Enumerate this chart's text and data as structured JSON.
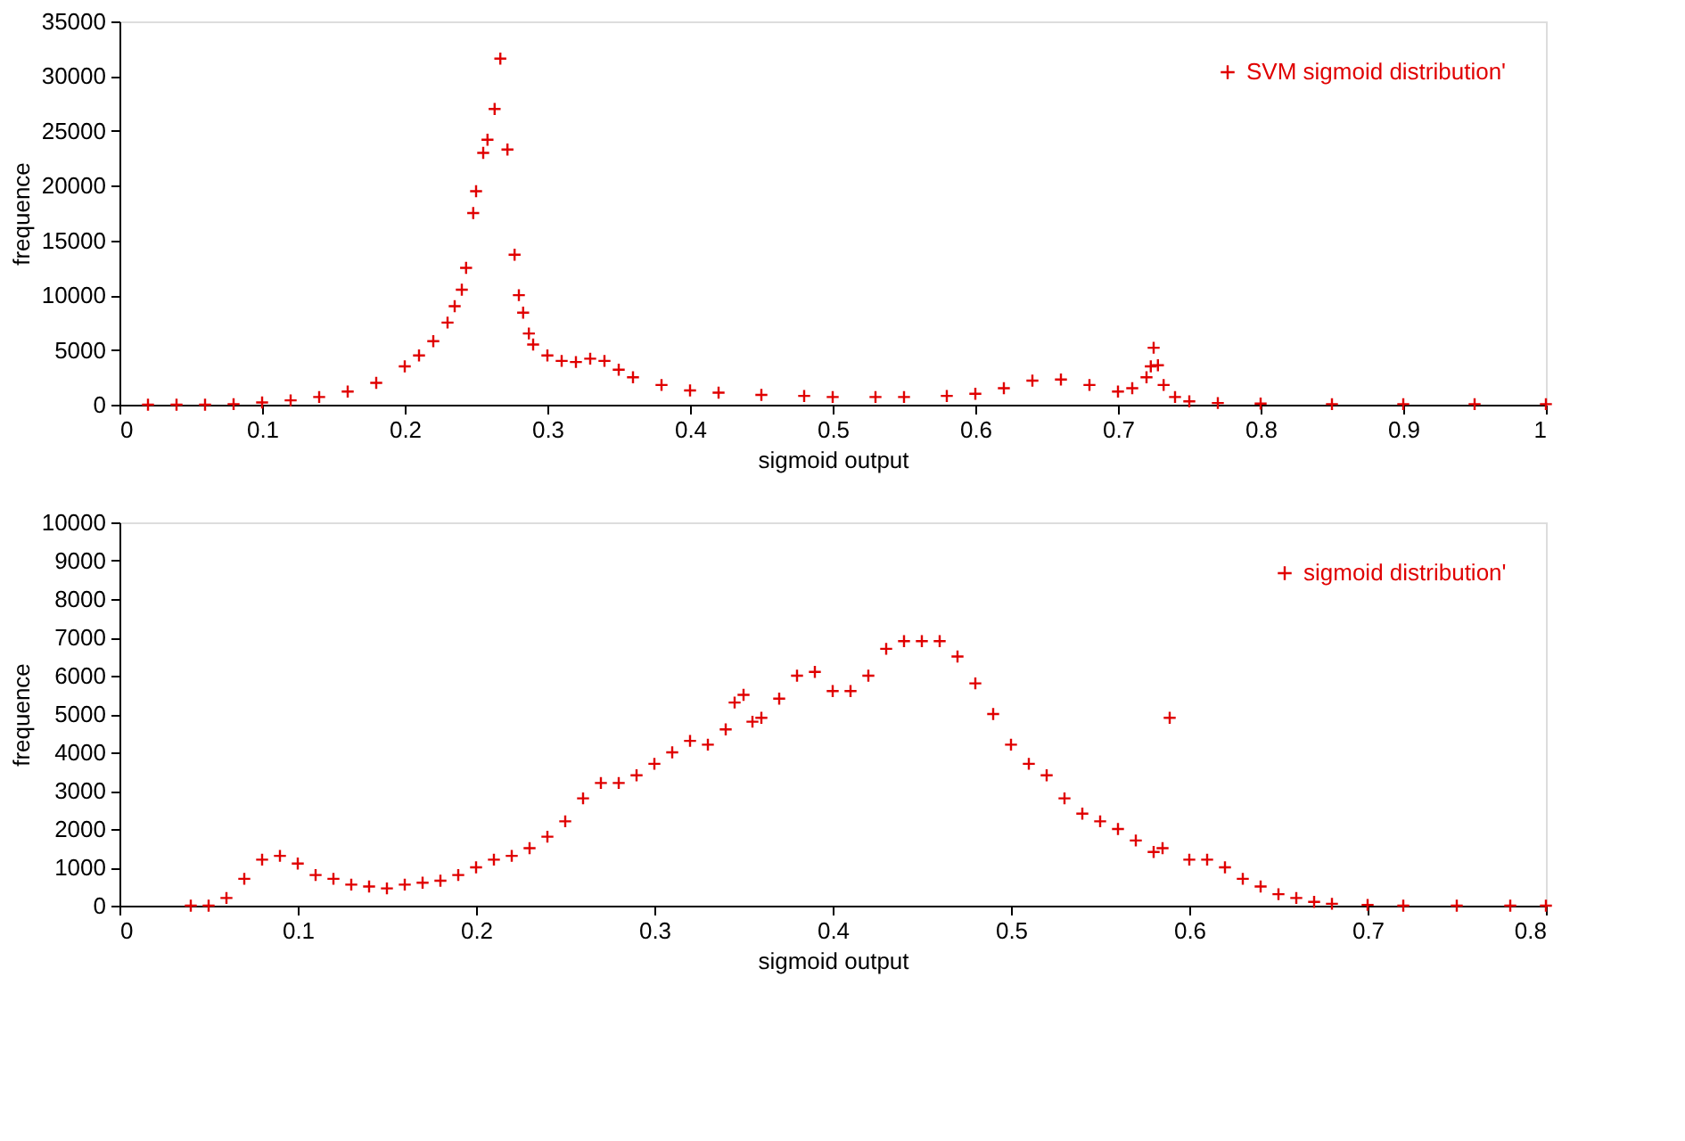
{
  "chart_data": [
    {
      "type": "scatter",
      "xlabel": "sigmoid output",
      "ylabel": "frequence",
      "xlim": [
        0,
        1
      ],
      "xticks": [
        0,
        0.1,
        0.2,
        0.3,
        0.4,
        0.5,
        0.6,
        0.7,
        0.8,
        0.9,
        1
      ],
      "ylim": [
        0,
        35000
      ],
      "yticks": [
        0,
        5000,
        10000,
        15000,
        20000,
        25000,
        30000,
        35000
      ],
      "grid": false,
      "legend": "top right",
      "marker": "cross",
      "series": [
        {
          "name": "SVM sigmoid distribution'",
          "color": "#e00000",
          "x": [
            0.02,
            0.04,
            0.06,
            0.08,
            0.1,
            0.12,
            0.14,
            0.16,
            0.18,
            0.2,
            0.21,
            0.22,
            0.23,
            0.235,
            0.24,
            0.243,
            0.248,
            0.25,
            0.255,
            0.258,
            0.263,
            0.267,
            0.272,
            0.277,
            0.28,
            0.283,
            0.287,
            0.29,
            0.3,
            0.31,
            0.32,
            0.33,
            0.34,
            0.35,
            0.36,
            0.38,
            0.4,
            0.42,
            0.45,
            0.48,
            0.5,
            0.53,
            0.55,
            0.58,
            0.6,
            0.62,
            0.64,
            0.66,
            0.68,
            0.7,
            0.71,
            0.72,
            0.723,
            0.725,
            0.728,
            0.732,
            0.74,
            0.75,
            0.77,
            0.8,
            0.85,
            0.9,
            0.95,
            1.0
          ],
          "values": [
            0,
            0,
            0,
            50,
            200,
            400,
            700,
            1200,
            2000,
            3500,
            4500,
            5800,
            7500,
            9000,
            10500,
            12500,
            17500,
            19500,
            23000,
            24200,
            27000,
            31600,
            23300,
            13700,
            10000,
            8400,
            6500,
            5500,
            4500,
            4000,
            3900,
            4200,
            4000,
            3200,
            2500,
            1800,
            1300,
            1100,
            900,
            800,
            700,
            700,
            700,
            800,
            1000,
            1500,
            2200,
            2300,
            1800,
            1200,
            1500,
            2500,
            3500,
            5200,
            3600,
            1800,
            700,
            300,
            150,
            100,
            50,
            50,
            50,
            50
          ]
        }
      ]
    },
    {
      "type": "scatter",
      "xlabel": "sigmoid output",
      "ylabel": "frequence",
      "xlim": [
        0,
        0.8
      ],
      "xticks": [
        0,
        0.1,
        0.2,
        0.3,
        0.4,
        0.5,
        0.6,
        0.7,
        0.8
      ],
      "ylim": [
        0,
        10000
      ],
      "yticks": [
        0,
        1000,
        2000,
        3000,
        4000,
        5000,
        6000,
        7000,
        8000,
        9000,
        10000
      ],
      "grid": false,
      "legend": "top right",
      "marker": "cross",
      "series": [
        {
          "name": "sigmoid distribution'",
          "color": "#e00000",
          "x": [
            0.04,
            0.05,
            0.06,
            0.07,
            0.08,
            0.09,
            0.1,
            0.11,
            0.12,
            0.13,
            0.14,
            0.15,
            0.16,
            0.17,
            0.18,
            0.19,
            0.2,
            0.21,
            0.22,
            0.23,
            0.24,
            0.25,
            0.26,
            0.27,
            0.28,
            0.29,
            0.3,
            0.31,
            0.32,
            0.33,
            0.34,
            0.345,
            0.35,
            0.355,
            0.36,
            0.37,
            0.38,
            0.39,
            0.4,
            0.41,
            0.42,
            0.43,
            0.44,
            0.45,
            0.46,
            0.47,
            0.48,
            0.49,
            0.5,
            0.51,
            0.52,
            0.53,
            0.54,
            0.55,
            0.56,
            0.57,
            0.58,
            0.585,
            0.589,
            0.6,
            0.61,
            0.62,
            0.63,
            0.64,
            0.65,
            0.66,
            0.67,
            0.68,
            0.7,
            0.72,
            0.75,
            0.78,
            0.8
          ],
          "values": [
            0,
            0,
            200,
            700,
            1200,
            1300,
            1100,
            800,
            700,
            550,
            500,
            450,
            550,
            600,
            650,
            800,
            1000,
            1200,
            1300,
            1500,
            1800,
            2200,
            2800,
            3200,
            3200,
            3400,
            3700,
            4000,
            4300,
            4200,
            4600,
            5300,
            5500,
            4800,
            4900,
            5400,
            6000,
            6100,
            5600,
            5600,
            6000,
            6700,
            6900,
            6900,
            6900,
            6500,
            5800,
            5000,
            4200,
            3700,
            3400,
            2800,
            2400,
            2200,
            2000,
            1700,
            1400,
            1500,
            4900,
            1200,
            1200,
            1000,
            700,
            500,
            300,
            200,
            100,
            50,
            20,
            0,
            0,
            0,
            0
          ]
        }
      ]
    }
  ]
}
